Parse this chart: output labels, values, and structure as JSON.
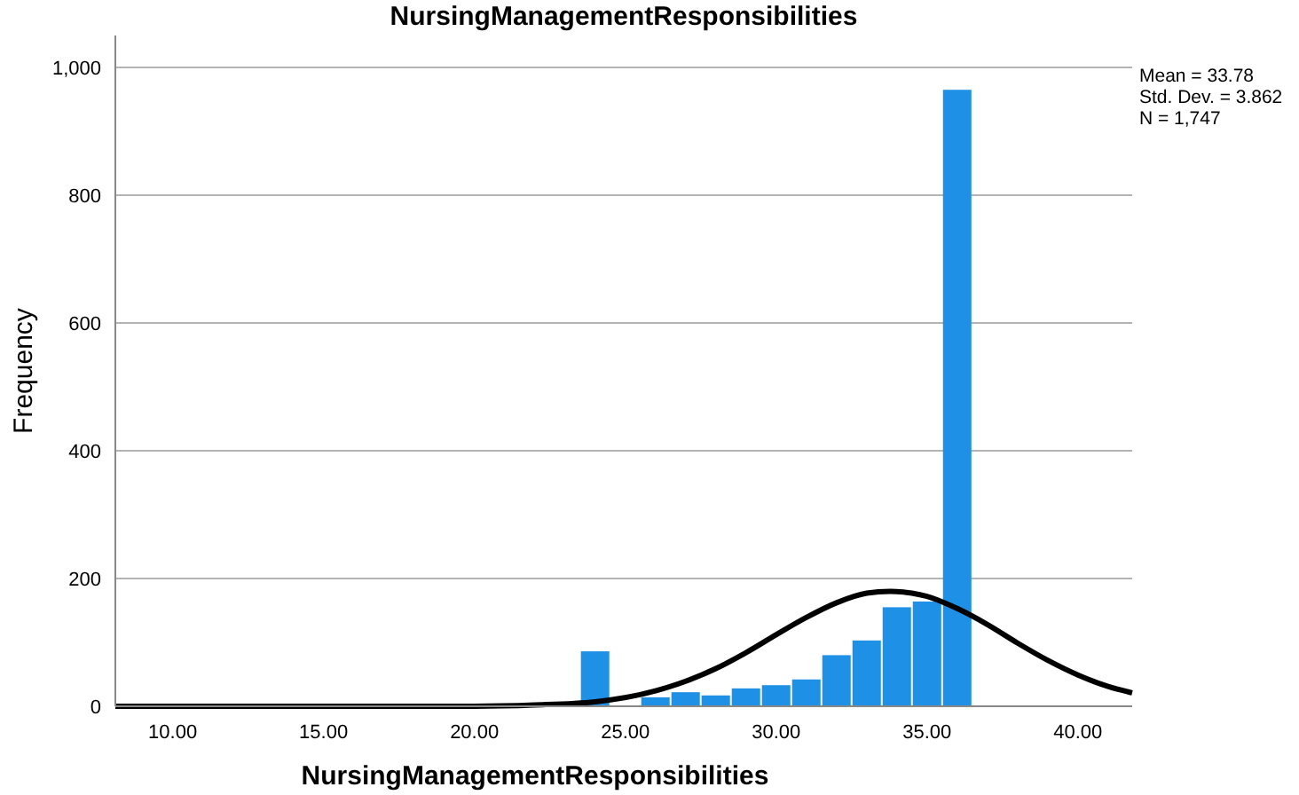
{
  "chart_data": {
    "type": "histogram",
    "title": "NursingManagementResponsibilities",
    "xlabel": "NursingManagementResponsibilities",
    "ylabel": "Frequency",
    "bins": [
      23.5,
      24.5,
      25.5,
      26.5,
      27.5,
      28.5,
      29.5,
      30.5,
      31.5,
      32.5,
      33.5,
      34.5,
      35.5,
      36.5
    ],
    "values": [
      86,
      null,
      14,
      22,
      17,
      28,
      33,
      42,
      80,
      103,
      155,
      164,
      965
    ],
    "color": "#1e90e6",
    "series": [
      {
        "type": "line",
        "color": "#000000",
        "x": [
          8.1,
          12,
          16,
          20,
          22,
          24,
          26,
          28,
          29,
          30,
          31,
          32,
          33,
          33.78,
          34.5,
          35,
          36,
          37,
          38,
          39,
          40,
          41,
          41.8
        ],
        "values": [
          0,
          0,
          0,
          0,
          2,
          7,
          24,
          59,
          84,
          112,
          139,
          162,
          177,
          180,
          177,
          172,
          153,
          128,
          99,
          72,
          49,
          31,
          21
        ]
      }
    ],
    "xlim": [
      8.1,
      41.8
    ],
    "xticks": [
      {
        "value": 10,
        "label": "10.00"
      },
      {
        "value": 15,
        "label": "15.00"
      },
      {
        "value": 20,
        "label": "20.00"
      },
      {
        "value": 25,
        "label": "25.00"
      },
      {
        "value": 30,
        "label": "30.00"
      },
      {
        "value": 35,
        "label": "35.00"
      },
      {
        "value": 40,
        "label": "40.00"
      }
    ],
    "ylim": [
      0,
      1050
    ],
    "yticks": [
      0,
      200,
      400,
      600,
      800,
      {
        "value": 1000,
        "label": "1,000"
      }
    ],
    "grid": "y",
    "annotations": [
      "Mean = 33.78",
      "Std. Dev. = 3.862",
      "N = 1,747"
    ]
  }
}
